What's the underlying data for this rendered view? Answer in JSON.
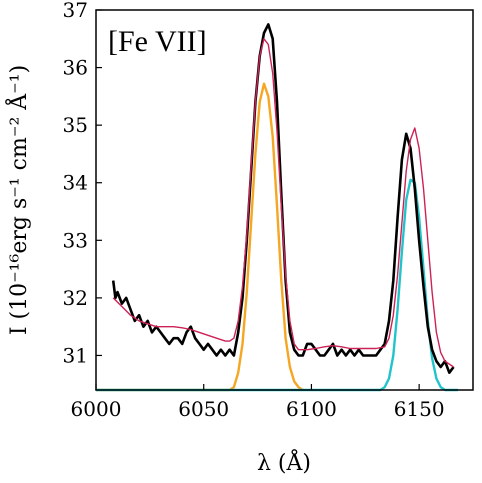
{
  "chart_data": {
    "type": "line",
    "title": "",
    "annotation": "[Fe VII]",
    "xlabel": "λ (Å)",
    "ylabel": "I (10⁻¹⁶erg s⁻¹ cm⁻² Å⁻¹)",
    "xlim": [
      6000,
      6175
    ],
    "ylim": [
      30.4,
      37.0
    ],
    "xticks": [
      "6000",
      "6050",
      "6100",
      "6150"
    ],
    "yticks": [
      "31",
      "32",
      "33",
      "34",
      "35",
      "36",
      "37"
    ],
    "grid": false,
    "legend": "none",
    "series": [
      {
        "role": "observed",
        "color": "#000000",
        "x": [
          6008,
          6009,
          6010,
          6012,
          6014,
          6016,
          6018,
          6020,
          6022,
          6024,
          6026,
          6028,
          6030,
          6032,
          6034,
          6036,
          6038,
          6040,
          6042,
          6044,
          6046,
          6048,
          6050,
          6052,
          6054,
          6056,
          6058,
          6060,
          6062,
          6064,
          6066,
          6068,
          6070,
          6072,
          6074,
          6076,
          6078,
          6080,
          6082,
          6084,
          6086,
          6088,
          6090,
          6092,
          6094,
          6096,
          6098,
          6100,
          6102,
          6104,
          6106,
          6108,
          6110,
          6112,
          6114,
          6116,
          6118,
          6120,
          6122,
          6124,
          6126,
          6128,
          6130,
          6132,
          6134,
          6136,
          6138,
          6140,
          6142,
          6144,
          6146,
          6148,
          6150,
          6152,
          6154,
          6156,
          6158,
          6160,
          6162,
          6164,
          6166
        ],
        "y": [
          32.3,
          32.0,
          32.1,
          31.9,
          32.0,
          31.8,
          31.6,
          31.7,
          31.5,
          31.6,
          31.4,
          31.5,
          31.4,
          31.3,
          31.2,
          31.3,
          31.3,
          31.2,
          31.4,
          31.5,
          31.3,
          31.2,
          31.1,
          31.2,
          31.1,
          31.0,
          31.1,
          31.0,
          31.1,
          31.0,
          31.4,
          32.0,
          33.0,
          34.2,
          35.4,
          36.2,
          36.6,
          36.75,
          36.5,
          35.4,
          33.8,
          32.3,
          31.4,
          31.1,
          31.0,
          31.0,
          31.2,
          31.2,
          31.1,
          31.0,
          31.0,
          31.1,
          31.2,
          31.0,
          31.1,
          31.0,
          31.1,
          31.0,
          31.1,
          31.0,
          31.0,
          31.0,
          31.0,
          31.1,
          31.2,
          31.6,
          32.3,
          33.4,
          34.4,
          34.85,
          34.6,
          33.9,
          33.0,
          32.2,
          31.5,
          31.1,
          30.9,
          30.8,
          30.9,
          30.7,
          30.8
        ]
      },
      {
        "role": "model total",
        "color": "#cc2255",
        "x": [
          6008,
          6012,
          6016,
          6020,
          6024,
          6028,
          6032,
          6036,
          6040,
          6044,
          6048,
          6052,
          6056,
          6060,
          6062,
          6064,
          6066,
          6068,
          6070,
          6072,
          6074,
          6076,
          6078,
          6080,
          6082,
          6084,
          6086,
          6088,
          6090,
          6092,
          6094,
          6098,
          6102,
          6106,
          6110,
          6114,
          6118,
          6122,
          6126,
          6130,
          6134,
          6136,
          6138,
          6140,
          6142,
          6144,
          6146,
          6148,
          6150,
          6152,
          6154,
          6156,
          6158,
          6160,
          6162,
          6166
        ],
        "y": [
          32.0,
          31.85,
          31.7,
          31.6,
          31.55,
          31.5,
          31.5,
          31.5,
          31.48,
          31.45,
          31.4,
          31.35,
          31.3,
          31.25,
          31.25,
          31.3,
          31.6,
          32.2,
          33.1,
          34.3,
          35.4,
          36.2,
          36.5,
          36.4,
          35.9,
          34.9,
          33.6,
          32.4,
          31.6,
          31.2,
          31.1,
          31.1,
          31.12,
          31.15,
          31.17,
          31.15,
          31.12,
          31.12,
          31.12,
          31.12,
          31.15,
          31.3,
          31.7,
          32.4,
          33.3,
          34.2,
          34.75,
          34.95,
          34.6,
          33.9,
          33.0,
          32.1,
          31.4,
          31.05,
          30.9,
          30.8
        ]
      },
      {
        "role": "component 6087",
        "color": "#f5a623",
        "x": [
          6062,
          6064,
          6066,
          6068,
          6070,
          6072,
          6074,
          6076,
          6078,
          6080,
          6082,
          6084,
          6086,
          6088,
          6090,
          6092,
          6094,
          6096
        ],
        "y": [
          30.4,
          30.45,
          30.7,
          31.2,
          32.1,
          33.3,
          34.5,
          35.4,
          35.72,
          35.5,
          34.8,
          33.6,
          32.3,
          31.3,
          30.8,
          30.55,
          30.45,
          30.4
        ]
      },
      {
        "role": "component 6087 baseline",
        "color": "#f5a623",
        "x": [
          6000,
          6062
        ],
        "y": [
          30.4,
          30.4
        ]
      },
      {
        "role": "component 6147",
        "color": "#22c4cc",
        "x": [
          6000,
          6132,
          6134,
          6136,
          6138,
          6140,
          6142,
          6144,
          6146,
          6148,
          6150,
          6152,
          6154,
          6156,
          6158,
          6160,
          6162,
          6168
        ],
        "y": [
          30.4,
          30.4,
          30.45,
          30.6,
          31.0,
          31.8,
          32.8,
          33.7,
          34.05,
          34.0,
          33.4,
          32.5,
          31.6,
          30.95,
          30.6,
          30.45,
          30.4,
          30.4
        ]
      }
    ]
  }
}
